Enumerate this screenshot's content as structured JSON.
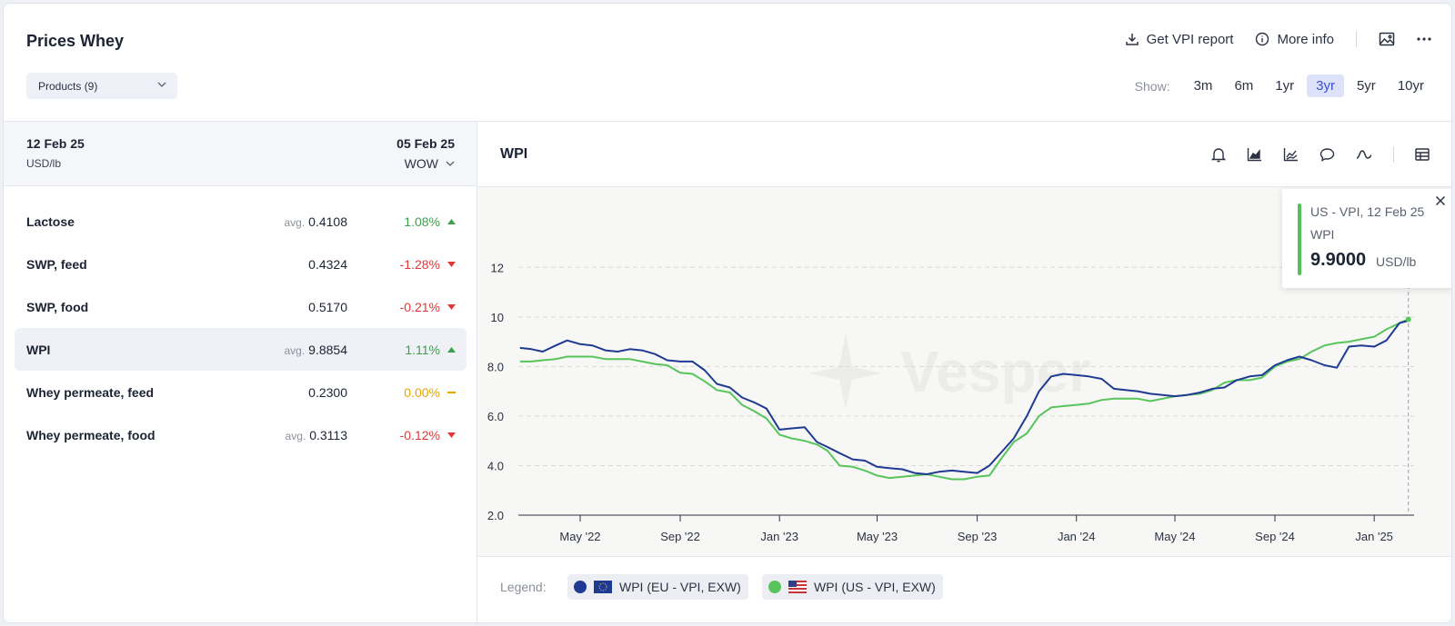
{
  "header": {
    "title": "Prices Whey",
    "get_report": "Get VPI report",
    "more_info": "More info",
    "products_select": "Products (9)",
    "show_label": "Show:",
    "ranges": [
      "3m",
      "6m",
      "1yr",
      "3yr",
      "5yr",
      "10yr"
    ],
    "active_range": "3yr"
  },
  "table": {
    "date_current": "12 Feb 25",
    "unit": "USD/lb",
    "date_compare": "05 Feb 25",
    "compare_mode": "WOW",
    "avg_prefix": "avg.",
    "rows": [
      {
        "name": "Lactose",
        "avg": true,
        "value": "0.4108",
        "change": "1.08%",
        "dir": "up"
      },
      {
        "name": "SWP, feed",
        "avg": false,
        "value": "0.4324",
        "change": "-1.28%",
        "dir": "down"
      },
      {
        "name": "SWP, food",
        "avg": false,
        "value": "0.5170",
        "change": "-0.21%",
        "dir": "down"
      },
      {
        "name": "WPI",
        "avg": true,
        "value": "9.8854",
        "change": "1.11%",
        "dir": "up",
        "selected": true
      },
      {
        "name": "Whey permeate, feed",
        "avg": false,
        "value": "0.2300",
        "change": "0.00%",
        "dir": "flat"
      },
      {
        "name": "Whey permeate, food",
        "avg": true,
        "value": "0.3113",
        "change": "-0.12%",
        "dir": "down"
      }
    ]
  },
  "chart_panel": {
    "title": "WPI",
    "legend_label": "Legend:",
    "watermark": "Vesper"
  },
  "tooltip": {
    "line1": "US - VPI, 12 Feb 25",
    "line2": "WPI",
    "value": "9.9000",
    "unit": "USD/lb"
  },
  "colors": {
    "eu": "#1f3a93",
    "us": "#58c45c",
    "accent": "#3c4fd1"
  },
  "chart_data": {
    "type": "line",
    "title": "",
    "xlabel": "",
    "ylabel": "",
    "ylim": [
      2.0,
      13.0
    ],
    "yticks": [
      2.0,
      4.0,
      6.0,
      8.0,
      10,
      12
    ],
    "ytick_labels": [
      "2.0",
      "4.0",
      "6.0",
      "8.0",
      "10",
      "12"
    ],
    "xlim": [
      "2022-02-14",
      "2025-02-19"
    ],
    "xticks": [
      "2022-05-01",
      "2022-09-01",
      "2023-01-01",
      "2023-05-01",
      "2023-09-01",
      "2024-01-01",
      "2024-05-01",
      "2024-09-01",
      "2025-01-01"
    ],
    "xtick_labels": [
      "May '22",
      "Sep '22",
      "Jan '23",
      "May '23",
      "Sep '23",
      "Jan '24",
      "May '24",
      "Sep '24",
      "Jan '25"
    ],
    "grid": true,
    "legend_position": "bottom",
    "series": [
      {
        "name": "WPI (EU - VPI, EXW)",
        "color": "#1f3a93",
        "points": [
          [
            "2022-02-16",
            8.75
          ],
          [
            "2022-03-02",
            8.7
          ],
          [
            "2022-03-16",
            8.6
          ],
          [
            "2022-04-01",
            8.85
          ],
          [
            "2022-04-15",
            9.05
          ],
          [
            "2022-05-01",
            8.9
          ],
          [
            "2022-05-16",
            8.85
          ],
          [
            "2022-06-01",
            8.65
          ],
          [
            "2022-06-16",
            8.6
          ],
          [
            "2022-07-01",
            8.7
          ],
          [
            "2022-07-16",
            8.65
          ],
          [
            "2022-08-01",
            8.5
          ],
          [
            "2022-08-16",
            8.25
          ],
          [
            "2022-09-01",
            8.2
          ],
          [
            "2022-09-16",
            8.2
          ],
          [
            "2022-10-01",
            7.85
          ],
          [
            "2022-10-16",
            7.3
          ],
          [
            "2022-11-01",
            7.15
          ],
          [
            "2022-11-16",
            6.75
          ],
          [
            "2022-12-01",
            6.55
          ],
          [
            "2022-12-16",
            6.3
          ],
          [
            "2023-01-01",
            5.45
          ],
          [
            "2023-01-16",
            5.5
          ],
          [
            "2023-02-01",
            5.55
          ],
          [
            "2023-02-16",
            4.95
          ],
          [
            "2023-03-01",
            4.75
          ],
          [
            "2023-03-16",
            4.5
          ],
          [
            "2023-04-01",
            4.25
          ],
          [
            "2023-04-16",
            4.2
          ],
          [
            "2023-05-01",
            3.95
          ],
          [
            "2023-05-16",
            3.9
          ],
          [
            "2023-06-01",
            3.85
          ],
          [
            "2023-06-16",
            3.7
          ],
          [
            "2023-07-01",
            3.65
          ],
          [
            "2023-07-16",
            3.75
          ],
          [
            "2023-08-01",
            3.8
          ],
          [
            "2023-08-16",
            3.75
          ],
          [
            "2023-09-01",
            3.7
          ],
          [
            "2023-09-16",
            4.0
          ],
          [
            "2023-10-01",
            4.55
          ],
          [
            "2023-10-16",
            5.1
          ],
          [
            "2023-11-01",
            6.0
          ],
          [
            "2023-11-16",
            7.0
          ],
          [
            "2023-12-01",
            7.6
          ],
          [
            "2023-12-16",
            7.7
          ],
          [
            "2024-01-01",
            7.65
          ],
          [
            "2024-01-16",
            7.6
          ],
          [
            "2024-02-01",
            7.5
          ],
          [
            "2024-02-16",
            7.1
          ],
          [
            "2024-03-01",
            7.05
          ],
          [
            "2024-03-16",
            7.0
          ],
          [
            "2024-04-01",
            6.9
          ],
          [
            "2024-04-16",
            6.85
          ],
          [
            "2024-05-01",
            6.8
          ],
          [
            "2024-05-16",
            6.85
          ],
          [
            "2024-06-01",
            6.95
          ],
          [
            "2024-06-16",
            7.1
          ],
          [
            "2024-07-01",
            7.15
          ],
          [
            "2024-07-16",
            7.45
          ],
          [
            "2024-08-01",
            7.6
          ],
          [
            "2024-08-16",
            7.65
          ],
          [
            "2024-09-01",
            8.05
          ],
          [
            "2024-09-16",
            8.25
          ],
          [
            "2024-10-01",
            8.4
          ],
          [
            "2024-10-16",
            8.25
          ],
          [
            "2024-11-01",
            8.05
          ],
          [
            "2024-11-16",
            7.95
          ],
          [
            "2024-12-01",
            8.8
          ],
          [
            "2024-12-16",
            8.85
          ],
          [
            "2025-01-01",
            8.8
          ],
          [
            "2025-01-16",
            9.05
          ],
          [
            "2025-02-01",
            9.75
          ],
          [
            "2025-02-12",
            9.85
          ]
        ]
      },
      {
        "name": "WPI (US - VPI, EXW)",
        "color": "#58c45c",
        "points": [
          [
            "2022-02-16",
            8.2
          ],
          [
            "2022-03-02",
            8.2
          ],
          [
            "2022-03-16",
            8.25
          ],
          [
            "2022-04-01",
            8.3
          ],
          [
            "2022-04-15",
            8.4
          ],
          [
            "2022-05-01",
            8.4
          ],
          [
            "2022-05-16",
            8.4
          ],
          [
            "2022-06-01",
            8.3
          ],
          [
            "2022-06-16",
            8.3
          ],
          [
            "2022-07-01",
            8.3
          ],
          [
            "2022-07-16",
            8.2
          ],
          [
            "2022-08-01",
            8.1
          ],
          [
            "2022-08-16",
            8.05
          ],
          [
            "2022-09-01",
            7.75
          ],
          [
            "2022-09-16",
            7.7
          ],
          [
            "2022-10-01",
            7.4
          ],
          [
            "2022-10-16",
            7.05
          ],
          [
            "2022-11-01",
            6.95
          ],
          [
            "2022-11-16",
            6.45
          ],
          [
            "2022-12-01",
            6.2
          ],
          [
            "2022-12-16",
            5.9
          ],
          [
            "2023-01-01",
            5.25
          ],
          [
            "2023-01-16",
            5.1
          ],
          [
            "2023-02-01",
            5.0
          ],
          [
            "2023-02-16",
            4.85
          ],
          [
            "2023-03-01",
            4.6
          ],
          [
            "2023-03-16",
            4.0
          ],
          [
            "2023-04-01",
            3.95
          ],
          [
            "2023-04-16",
            3.8
          ],
          [
            "2023-05-01",
            3.6
          ],
          [
            "2023-05-16",
            3.5
          ],
          [
            "2023-06-01",
            3.55
          ],
          [
            "2023-06-16",
            3.6
          ],
          [
            "2023-07-01",
            3.65
          ],
          [
            "2023-07-16",
            3.55
          ],
          [
            "2023-08-01",
            3.45
          ],
          [
            "2023-08-16",
            3.45
          ],
          [
            "2023-09-01",
            3.55
          ],
          [
            "2023-09-16",
            3.6
          ],
          [
            "2023-10-01",
            4.3
          ],
          [
            "2023-10-16",
            4.95
          ],
          [
            "2023-11-01",
            5.3
          ],
          [
            "2023-11-16",
            6.0
          ],
          [
            "2023-12-01",
            6.35
          ],
          [
            "2023-12-16",
            6.4
          ],
          [
            "2024-01-01",
            6.45
          ],
          [
            "2024-01-16",
            6.5
          ],
          [
            "2024-02-01",
            6.65
          ],
          [
            "2024-02-16",
            6.7
          ],
          [
            "2024-03-01",
            6.7
          ],
          [
            "2024-03-16",
            6.7
          ],
          [
            "2024-04-01",
            6.6
          ],
          [
            "2024-04-16",
            6.7
          ],
          [
            "2024-05-01",
            6.8
          ],
          [
            "2024-05-16",
            6.85
          ],
          [
            "2024-06-01",
            6.9
          ],
          [
            "2024-06-16",
            7.05
          ],
          [
            "2024-07-01",
            7.35
          ],
          [
            "2024-07-16",
            7.45
          ],
          [
            "2024-08-01",
            7.45
          ],
          [
            "2024-08-16",
            7.55
          ],
          [
            "2024-09-01",
            8.0
          ],
          [
            "2024-09-16",
            8.2
          ],
          [
            "2024-10-01",
            8.3
          ],
          [
            "2024-10-16",
            8.6
          ],
          [
            "2024-11-01",
            8.85
          ],
          [
            "2024-11-16",
            8.95
          ],
          [
            "2024-12-01",
            9.0
          ],
          [
            "2024-12-16",
            9.1
          ],
          [
            "2025-01-01",
            9.2
          ],
          [
            "2025-01-16",
            9.5
          ],
          [
            "2025-02-01",
            9.75
          ],
          [
            "2025-02-12",
            9.9
          ]
        ]
      }
    ]
  }
}
